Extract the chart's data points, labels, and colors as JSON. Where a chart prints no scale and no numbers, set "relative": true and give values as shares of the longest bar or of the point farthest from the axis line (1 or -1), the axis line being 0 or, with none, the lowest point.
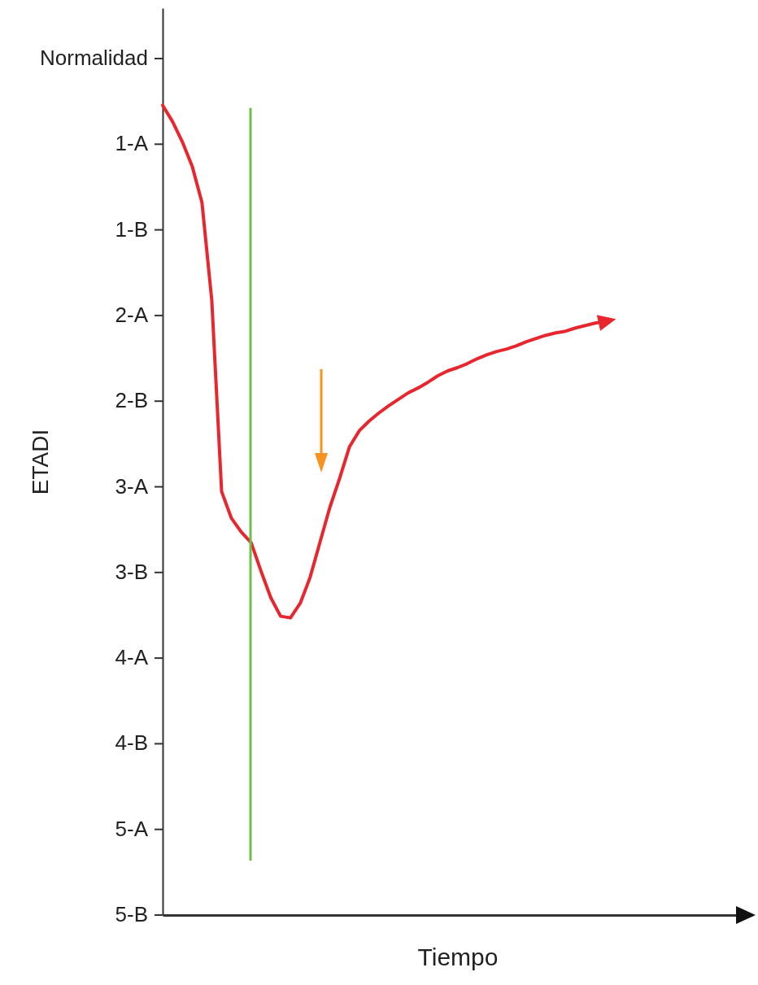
{
  "chart_data": {
    "type": "line",
    "xlabel": "Tiempo",
    "ylabel": "ETADI",
    "relative": true,
    "categories": [
      null,
      null,
      null,
      null,
      null,
      null,
      null,
      null,
      null,
      null,
      null,
      null,
      null,
      null,
      null,
      null,
      null,
      null,
      null,
      null,
      null,
      null,
      null,
      null,
      null,
      null,
      null,
      null,
      null,
      null,
      null,
      null,
      null,
      null,
      null,
      null,
      null,
      null,
      null,
      null,
      null,
      null,
      null,
      null,
      null,
      null,
      null,
      null,
      null,
      null,
      null,
      null,
      null,
      null,
      null,
      null,
      null,
      null,
      null,
      null,
      null
    ],
    "annotations": [
      "Normalidad",
      "1-A",
      "1-B",
      "2-A",
      "2-B",
      "3-A",
      "3-B",
      "4-A",
      "4-B",
      "5-A",
      "5-B"
    ],
    "marker": "none",
    "line_style": "solid",
    "series": [
      {
        "color": "#e8262d",
        "values": [
          1,
          0.98,
          0.955,
          0.925,
          0.88,
          0.759,
          0.523,
          0.49,
          0.473,
          0.46,
          0.425,
          0.392,
          0.369,
          0.367,
          0.385,
          0.417,
          0.46,
          0.503,
          0.539,
          0.578,
          0.598,
          0.61,
          0.62,
          0.629,
          0.637,
          0.645,
          0.651,
          0.658,
          0.666,
          0.672,
          0.676,
          0.681,
          0.687,
          0.692,
          0.696,
          0.699,
          0.703,
          0.708,
          0.712,
          0.716,
          0.719,
          0.721,
          0.725,
          0.728,
          0.731,
          0.733,
          null,
          null,
          null,
          null,
          null,
          null,
          null,
          null,
          null,
          null,
          null,
          null,
          null,
          null,
          null
        ]
      }
    ]
  }
}
